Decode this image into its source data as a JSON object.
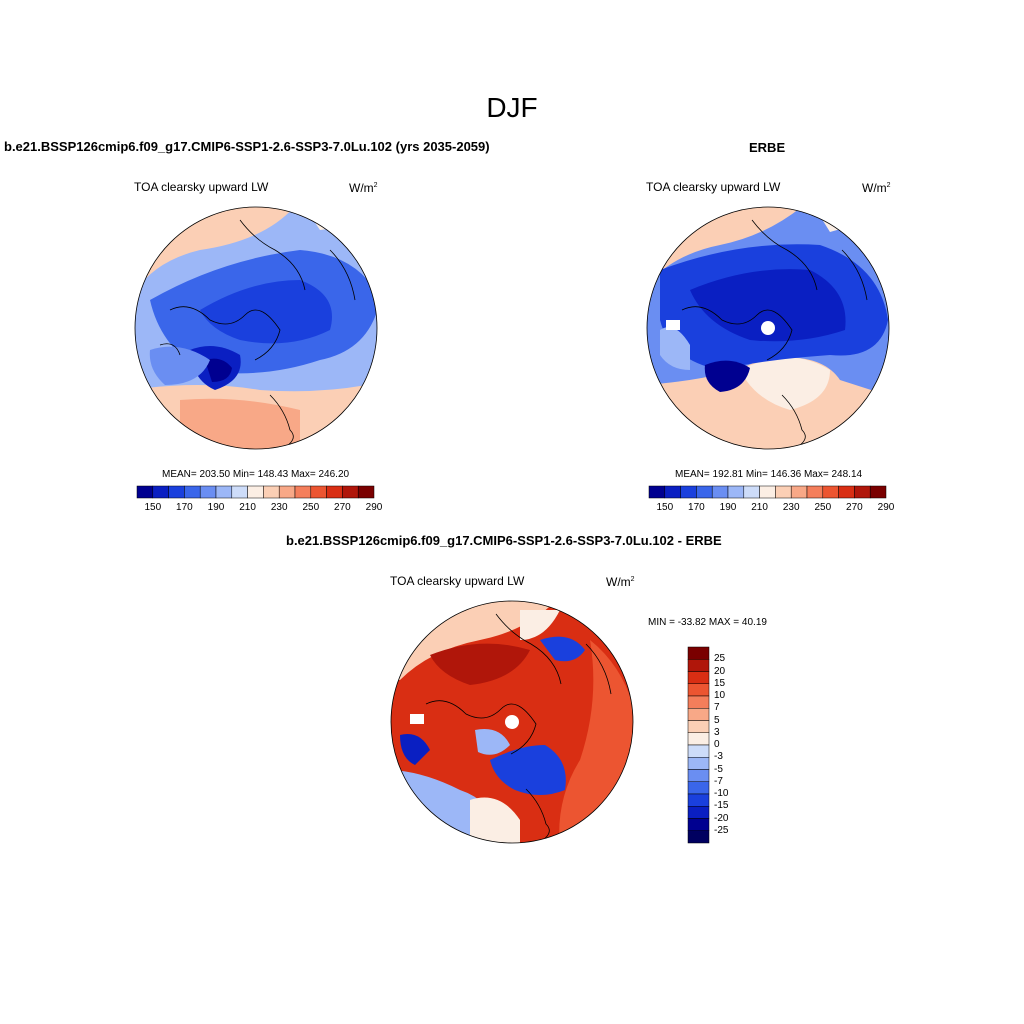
{
  "figure": {
    "title": "DJF"
  },
  "panels": {
    "model": {
      "heading": "b.e21.BSSP126cmip6.f09_g17.CMIP6-SSP1-2.6-SSP3-7.0Lu.102 (yrs 2035-2059)",
      "variable": "TOA clearsky upward LW",
      "units_base": "W/m",
      "units_exp": "2",
      "stats": "MEAN= 203.50  Min= 148.43  Max= 246.20",
      "colorbar_labels": [
        "150",
        "170",
        "190",
        "210",
        "230",
        "250",
        "270",
        "290"
      ]
    },
    "obs": {
      "heading": "ERBE",
      "variable": "TOA clearsky upward LW",
      "units_base": "W/m",
      "units_exp": "2",
      "stats": "MEAN= 192.81  Min= 146.36  Max= 248.14",
      "colorbar_labels": [
        "150",
        "170",
        "190",
        "210",
        "230",
        "250",
        "270",
        "290"
      ]
    },
    "diff": {
      "heading": "b.e21.BSSP126cmip6.f09_g17.CMIP6-SSP1-2.6-SSP3-7.0Lu.102 - ERBE",
      "variable": "TOA clearsky upward LW",
      "units_base": "W/m",
      "units_exp": "2",
      "stats": "MIN = -33.82 MAX =  40.19",
      "colorbar_labels": [
        "25",
        "20",
        "15",
        "10",
        "7",
        "5",
        "3",
        "0",
        "-3",
        "-5",
        "-7",
        "-10",
        "-15",
        "-20",
        "-25"
      ]
    }
  },
  "colors": {
    "abs_scale": [
      "#000090",
      "#0a1fc2",
      "#1a40dd",
      "#3a66ea",
      "#6a8ef2",
      "#9cb7f7",
      "#cddcf9",
      "#fbeee4",
      "#fbcfb5",
      "#f8a887",
      "#f47e5b",
      "#ec5531",
      "#d92e13",
      "#b0160a",
      "#7a0000"
    ],
    "diff_scale": [
      "#7a0000",
      "#b0160a",
      "#d92e13",
      "#ec5531",
      "#f47e5b",
      "#f8a887",
      "#fbcfb5",
      "#fbeee4",
      "#cddcf9",
      "#9cb7f7",
      "#6a8ef2",
      "#3a66ea",
      "#1a40dd",
      "#0a1fc2",
      "#000090",
      "#000060"
    ]
  }
}
